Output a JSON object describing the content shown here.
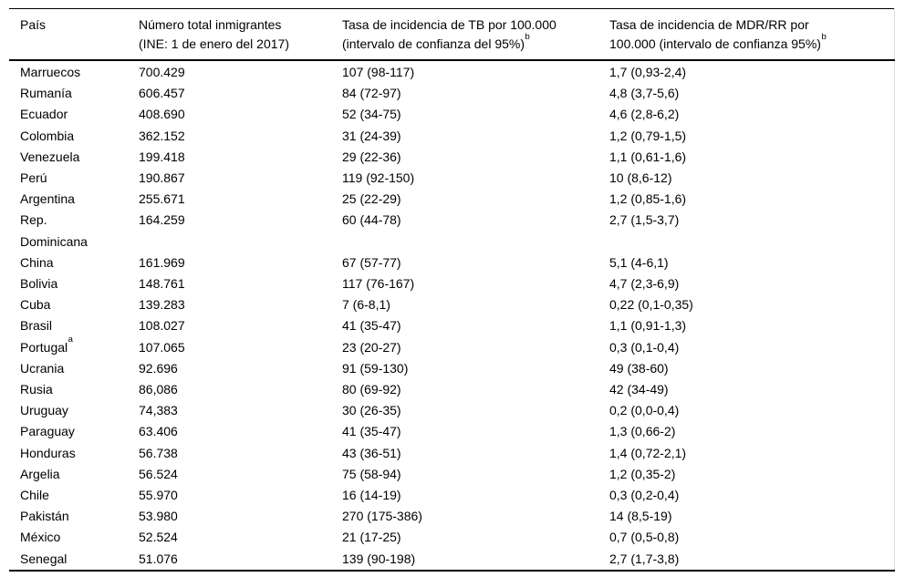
{
  "chart_data": {
    "type": "table",
    "title": "",
    "columns": [
      {
        "key": "pais",
        "lines": [
          "País"
        ],
        "sup": ""
      },
      {
        "key": "inmigrantes",
        "lines": [
          "Número total inmigrantes",
          "(INE: 1 de enero del 2017)"
        ],
        "sup": ""
      },
      {
        "key": "tb",
        "lines": [
          "Tasa de incidencia de TB por 100.000",
          "(intervalo de confianza del 95%)"
        ],
        "sup": "b"
      },
      {
        "key": "mdr",
        "lines": [
          "Tasa de incidencia de MDR/RR por",
          "100.000 (intervalo de confianza 95%)"
        ],
        "sup": "b"
      }
    ],
    "rows": [
      {
        "pais": "Marruecos",
        "pais_sup": "",
        "inmigrantes": "700.429",
        "tb": "107 (98-117)",
        "mdr": "1,7 (0,93-2,4)"
      },
      {
        "pais": "Rumanía",
        "pais_sup": "",
        "inmigrantes": "606.457",
        "tb": "84 (72-97)",
        "mdr": "4,8 (3,7-5,6)"
      },
      {
        "pais": "Ecuador",
        "pais_sup": "",
        "inmigrantes": "408.690",
        "tb": "52 (34-75)",
        "mdr": "4,6 (2,8-6,2)"
      },
      {
        "pais": "Colombia",
        "pais_sup": "",
        "inmigrantes": "362.152",
        "tb": "31 (24-39)",
        "mdr": "1,2 (0,79-1,5)"
      },
      {
        "pais": "Venezuela",
        "pais_sup": "",
        "inmigrantes": "199.418",
        "tb": "29 (22-36)",
        "mdr": "1,1 (0,61-1,6)"
      },
      {
        "pais": "Perú",
        "pais_sup": "",
        "inmigrantes": "190.867",
        "tb": "119 (92-150)",
        "mdr": "10 (8,6-12)"
      },
      {
        "pais": "Argentina",
        "pais_sup": "",
        "inmigrantes": "255.671",
        "tb": "25 (22-29)",
        "mdr": "1,2 (0,85-1,6)"
      },
      {
        "pais": "Rep.\nDominicana",
        "pais_sup": "",
        "inmigrantes": "164.259",
        "tb": "60 (44-78)",
        "mdr": "2,7 (1,5-3,7)"
      },
      {
        "pais": "China",
        "pais_sup": "",
        "inmigrantes": "161.969",
        "tb": "67 (57-77)",
        "mdr": "5,1 (4-6,1)"
      },
      {
        "pais": "Bolivia",
        "pais_sup": "",
        "inmigrantes": "148.761",
        "tb": "117 (76-167)",
        "mdr": "4,7 (2,3-6,9)"
      },
      {
        "pais": "Cuba",
        "pais_sup": "",
        "inmigrantes": "139.283",
        "tb": "7 (6-8,1)",
        "mdr": "0,22 (0,1-0,35)"
      },
      {
        "pais": "Brasil",
        "pais_sup": "",
        "inmigrantes": "108.027",
        "tb": "41 (35-47)",
        "mdr": "1,1 (0,91-1,3)"
      },
      {
        "pais": "Portugal",
        "pais_sup": "a",
        "inmigrantes": "107.065",
        "tb": "23 (20-27)",
        "mdr": "0,3 (0,1-0,4)"
      },
      {
        "pais": "Ucrania",
        "pais_sup": "",
        "inmigrantes": "92.696",
        "tb": "91 (59-130)",
        "mdr": "49 (38-60)"
      },
      {
        "pais": "Rusia",
        "pais_sup": "",
        "inmigrantes": "86,086",
        "tb": "80 (69-92)",
        "mdr": "42 (34-49)"
      },
      {
        "pais": "Uruguay",
        "pais_sup": "",
        "inmigrantes": "74,383",
        "tb": "30 (26-35)",
        "mdr": "0,2 (0,0-0,4)"
      },
      {
        "pais": "Paraguay",
        "pais_sup": "",
        "inmigrantes": "63.406",
        "tb": "41 (35-47)",
        "mdr": "1,3 (0,66-2)"
      },
      {
        "pais": "Honduras",
        "pais_sup": "",
        "inmigrantes": "56.738",
        "tb": "43 (36-51)",
        "mdr": "1,4 (0,72-2,1)"
      },
      {
        "pais": "Argelia",
        "pais_sup": "",
        "inmigrantes": "56.524",
        "tb": "75 (58-94)",
        "mdr": "1,2 (0,35-2)"
      },
      {
        "pais": "Chile",
        "pais_sup": "",
        "inmigrantes": "55.970",
        "tb": "16 (14-19)",
        "mdr": "0,3 (0,2-0,4)"
      },
      {
        "pais": "Pakistán",
        "pais_sup": "",
        "inmigrantes": "53.980",
        "tb": "270 (175-386)",
        "mdr": "14 (8,5-19)"
      },
      {
        "pais": "México",
        "pais_sup": "",
        "inmigrantes": "52.524",
        "tb": "21 (17-25)",
        "mdr": "0,7 (0,5-0,8)"
      },
      {
        "pais": "Senegal",
        "pais_sup": "",
        "inmigrantes": "51.076",
        "tb": "139 (90-198)",
        "mdr": "2,7 (1,7-3,8)"
      }
    ]
  }
}
